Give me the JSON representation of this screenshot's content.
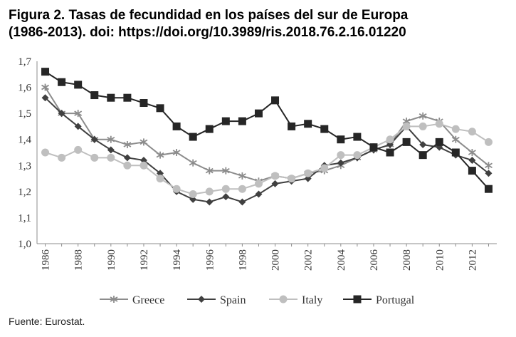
{
  "title_line1": "Figura 2. Tasas de fecundidad en los países del sur de Europa",
  "title_line2": "(1986-2013). doi: https://doi.org/10.3989/ris.2018.76.2.16.01220",
  "source": "Fuente: Eurostat.",
  "chart_data": {
    "type": "line",
    "x": [
      1986,
      1987,
      1988,
      1989,
      1990,
      1991,
      1992,
      1993,
      1994,
      1995,
      1996,
      1997,
      1998,
      1999,
      2000,
      2001,
      2002,
      2003,
      2004,
      2005,
      2006,
      2007,
      2008,
      2009,
      2010,
      2011,
      2012,
      2013
    ],
    "xticks": [
      "1986",
      "1988",
      "1990",
      "1992",
      "1994",
      "1996",
      "1998",
      "2000",
      "2002",
      "2004",
      "2006",
      "2008",
      "2010",
      "2012"
    ],
    "ylim": [
      1.0,
      1.7
    ],
    "yticks": [
      "1,0",
      "1,1",
      "1,2",
      "1,3",
      "1,4",
      "1,5",
      "1,6",
      "1,7"
    ],
    "grid": false,
    "legend_position": "bottom",
    "series": [
      {
        "name": "Greece",
        "marker": "star",
        "color": "#8c8c8c",
        "values": [
          1.6,
          1.5,
          1.5,
          1.4,
          1.4,
          1.38,
          1.39,
          1.34,
          1.35,
          1.31,
          1.28,
          1.28,
          1.26,
          1.24,
          1.26,
          1.25,
          1.27,
          1.28,
          1.3,
          1.33,
          1.36,
          1.38,
          1.47,
          1.49,
          1.47,
          1.4,
          1.35,
          1.3
        ]
      },
      {
        "name": "Spain",
        "marker": "diamond",
        "color": "#404040",
        "values": [
          1.56,
          1.5,
          1.45,
          1.4,
          1.36,
          1.33,
          1.32,
          1.27,
          1.2,
          1.17,
          1.16,
          1.18,
          1.16,
          1.19,
          1.23,
          1.24,
          1.25,
          1.3,
          1.31,
          1.33,
          1.36,
          1.38,
          1.45,
          1.38,
          1.37,
          1.34,
          1.32,
          1.27
        ]
      },
      {
        "name": "Italy",
        "marker": "circle",
        "color": "#bfbfbf",
        "values": [
          1.35,
          1.33,
          1.36,
          1.33,
          1.33,
          1.3,
          1.3,
          1.25,
          1.21,
          1.19,
          1.2,
          1.21,
          1.21,
          1.23,
          1.26,
          1.25,
          1.27,
          1.29,
          1.34,
          1.34,
          1.37,
          1.4,
          1.45,
          1.45,
          1.46,
          1.44,
          1.43,
          1.39
        ]
      },
      {
        "name": "Portugal",
        "marker": "square",
        "color": "#262626",
        "values": [
          1.66,
          1.62,
          1.61,
          1.57,
          1.56,
          1.56,
          1.54,
          1.52,
          1.45,
          1.41,
          1.44,
          1.47,
          1.47,
          1.5,
          1.55,
          1.45,
          1.46,
          1.44,
          1.4,
          1.41,
          1.37,
          1.35,
          1.39,
          1.34,
          1.39,
          1.35,
          1.28,
          1.21
        ]
      }
    ]
  }
}
